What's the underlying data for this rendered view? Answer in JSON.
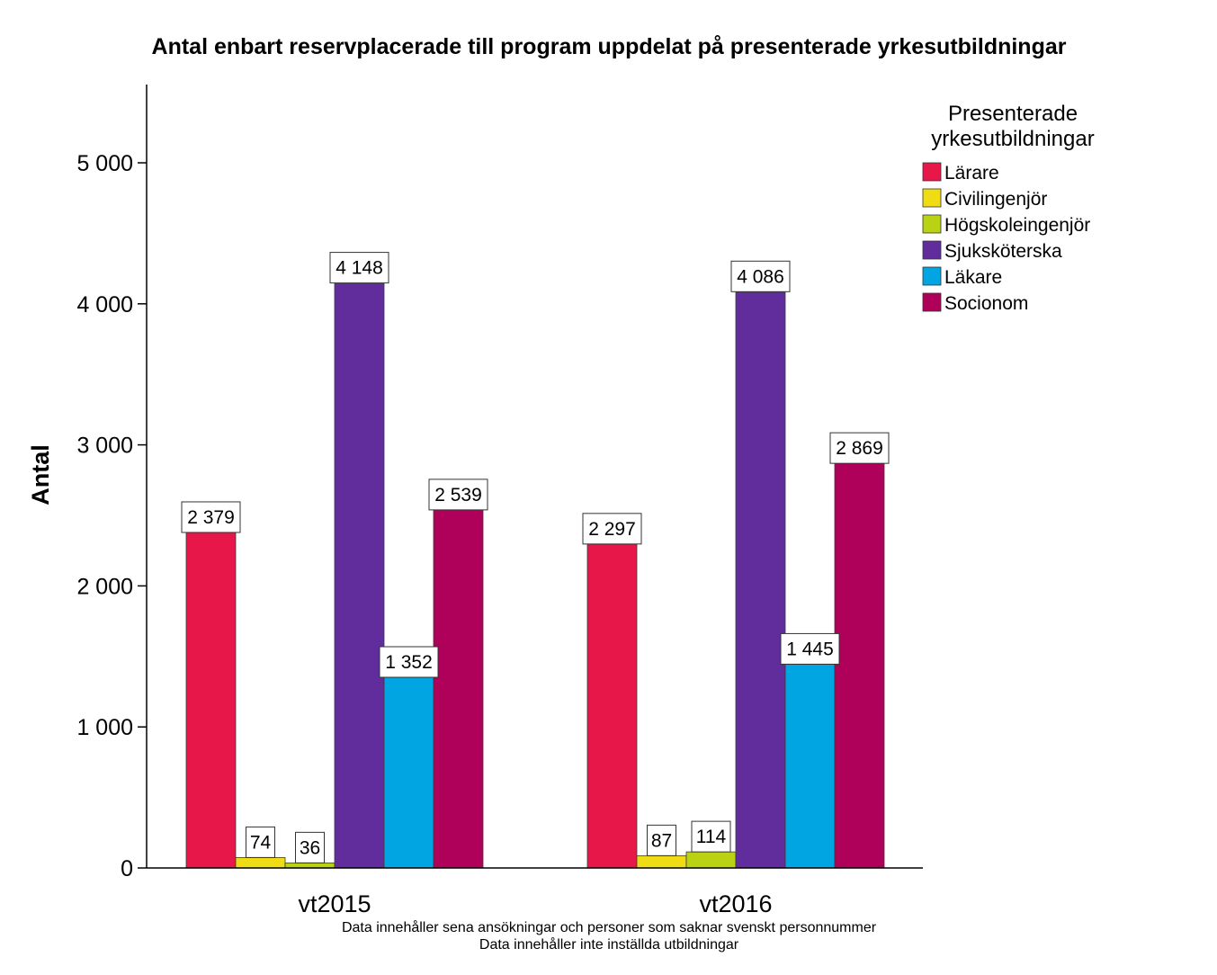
{
  "chart_data": {
    "type": "bar",
    "title": "Antal enbart reservplacerade till program uppdelat på presenterade yrkesutbildningar",
    "ylabel": "Antal",
    "xlabel": "",
    "ylim": [
      0,
      5550
    ],
    "y_ticks": [
      0,
      1000,
      2000,
      3000,
      4000,
      5000
    ],
    "y_tick_labels": [
      "0",
      "1 000",
      "2 000",
      "3 000",
      "4 000",
      "5 000"
    ],
    "categories": [
      "vt2015",
      "vt2016"
    ],
    "legend_title": [
      "Presenterade",
      "yrkesutbildningar"
    ],
    "legend_position": "top-right",
    "grid": false,
    "series": [
      {
        "name": "Lärare",
        "color": "#e8174a",
        "values": [
          2379,
          2297
        ],
        "labels": [
          "2 379",
          "2 297"
        ]
      },
      {
        "name": "Civilingenjör",
        "color": "#f0dc14",
        "values": [
          74,
          87
        ],
        "labels": [
          "74",
          "87"
        ]
      },
      {
        "name": "Högskoleingenjör",
        "color": "#b9d214",
        "values": [
          36,
          114
        ],
        "labels": [
          "36",
          "114"
        ]
      },
      {
        "name": "Sjuksköterska",
        "color": "#612d9c",
        "values": [
          4148,
          4086
        ],
        "labels": [
          "4 148",
          "4 086"
        ]
      },
      {
        "name": "Läkare",
        "color": "#00a5e1",
        "values": [
          1352,
          1445
        ],
        "labels": [
          "1 352",
          "1 445"
        ]
      },
      {
        "name": "Socionom",
        "color": "#af005a",
        "values": [
          2539,
          2869
        ],
        "labels": [
          "2 539",
          "2 869"
        ]
      }
    ],
    "notes": [
      "Data innehåller sena ansökningar och personer som saknar svenskt personnummer",
      "Data innehåller inte inställda utbildningar"
    ]
  }
}
